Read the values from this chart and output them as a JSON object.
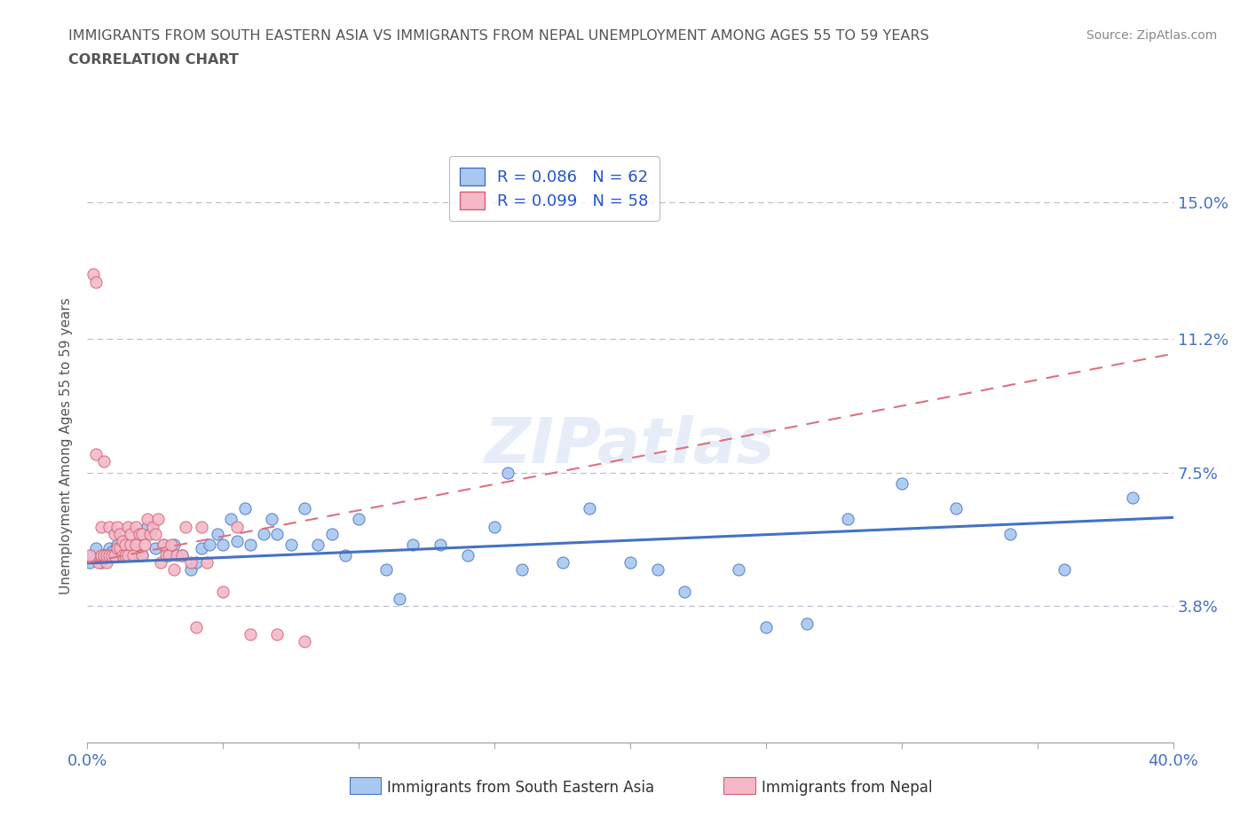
{
  "title_line1": "IMMIGRANTS FROM SOUTH EASTERN ASIA VS IMMIGRANTS FROM NEPAL UNEMPLOYMENT AMONG AGES 55 TO 59 YEARS",
  "title_line2": "CORRELATION CHART",
  "source": "Source: ZipAtlas.com",
  "ylabel": "Unemployment Among Ages 55 to 59 years",
  "xlim": [
    0.0,
    0.4
  ],
  "ylim": [
    0.0,
    0.165
  ],
  "ytick_positions": [
    0.038,
    0.075,
    0.112,
    0.15
  ],
  "ytick_labels": [
    "3.8%",
    "7.5%",
    "11.2%",
    "15.0%"
  ],
  "series1_color": "#a8c8f0",
  "series1_edge": "#4472c4",
  "series2_color": "#f5b8c8",
  "series2_edge": "#d06070",
  "series1_label": "Immigrants from South Eastern Asia",
  "series2_label": "Immigrants from Nepal",
  "R1": 0.086,
  "N1": 62,
  "R2": 0.099,
  "N2": 58,
  "trendline1_color": "#4472c4",
  "trendline2_color": "#e07080",
  "legend_color": "#2255cc",
  "background_color": "#ffffff",
  "grid_color": "#bbbbcc",
  "title_color": "#555555",
  "series1_x": [
    0.001,
    0.002,
    0.003,
    0.005,
    0.006,
    0.008,
    0.009,
    0.01,
    0.011,
    0.012,
    0.013,
    0.015,
    0.016,
    0.018,
    0.02,
    0.022,
    0.025,
    0.028,
    0.03,
    0.032,
    0.035,
    0.038,
    0.04,
    0.042,
    0.045,
    0.048,
    0.05,
    0.053,
    0.055,
    0.058,
    0.06,
    0.065,
    0.068,
    0.07,
    0.075,
    0.08,
    0.085,
    0.09,
    0.095,
    0.1,
    0.11,
    0.115,
    0.12,
    0.13,
    0.14,
    0.15,
    0.155,
    0.16,
    0.175,
    0.185,
    0.2,
    0.21,
    0.22,
    0.24,
    0.25,
    0.265,
    0.28,
    0.3,
    0.32,
    0.34,
    0.36,
    0.385
  ],
  "series1_y": [
    0.05,
    0.052,
    0.054,
    0.05,
    0.052,
    0.054,
    0.053,
    0.052,
    0.055,
    0.052,
    0.054,
    0.055,
    0.052,
    0.053,
    0.052,
    0.06,
    0.054,
    0.055,
    0.052,
    0.055,
    0.052,
    0.048,
    0.05,
    0.054,
    0.055,
    0.058,
    0.055,
    0.062,
    0.056,
    0.065,
    0.055,
    0.058,
    0.062,
    0.058,
    0.055,
    0.065,
    0.055,
    0.058,
    0.052,
    0.062,
    0.048,
    0.04,
    0.055,
    0.055,
    0.052,
    0.06,
    0.075,
    0.048,
    0.05,
    0.065,
    0.05,
    0.048,
    0.042,
    0.048,
    0.032,
    0.033,
    0.062,
    0.072,
    0.065,
    0.058,
    0.048,
    0.068
  ],
  "series2_x": [
    0.001,
    0.002,
    0.003,
    0.003,
    0.004,
    0.005,
    0.005,
    0.006,
    0.006,
    0.007,
    0.007,
    0.008,
    0.008,
    0.009,
    0.01,
    0.01,
    0.011,
    0.011,
    0.012,
    0.012,
    0.013,
    0.013,
    0.014,
    0.014,
    0.015,
    0.015,
    0.016,
    0.016,
    0.017,
    0.018,
    0.018,
    0.019,
    0.02,
    0.02,
    0.021,
    0.022,
    0.023,
    0.024,
    0.025,
    0.026,
    0.027,
    0.028,
    0.029,
    0.03,
    0.031,
    0.032,
    0.033,
    0.035,
    0.036,
    0.038,
    0.04,
    0.042,
    0.044,
    0.05,
    0.055,
    0.06,
    0.07,
    0.08
  ],
  "series2_y": [
    0.052,
    0.13,
    0.128,
    0.08,
    0.05,
    0.052,
    0.06,
    0.052,
    0.078,
    0.05,
    0.052,
    0.052,
    0.06,
    0.052,
    0.052,
    0.058,
    0.054,
    0.06,
    0.058,
    0.054,
    0.052,
    0.056,
    0.055,
    0.052,
    0.052,
    0.06,
    0.055,
    0.058,
    0.052,
    0.055,
    0.06,
    0.058,
    0.052,
    0.058,
    0.055,
    0.062,
    0.058,
    0.06,
    0.058,
    0.062,
    0.05,
    0.055,
    0.052,
    0.052,
    0.055,
    0.048,
    0.052,
    0.052,
    0.06,
    0.05,
    0.032,
    0.06,
    0.05,
    0.042,
    0.06,
    0.03,
    0.03,
    0.028
  ],
  "trendline1_x0": 0.0,
  "trendline1_y0": 0.0498,
  "trendline1_x1": 0.4,
  "trendline1_y1": 0.0625,
  "trendline2_x0": 0.0,
  "trendline2_y0": 0.05,
  "trendline2_x1": 0.4,
  "trendline2_y1": 0.108
}
